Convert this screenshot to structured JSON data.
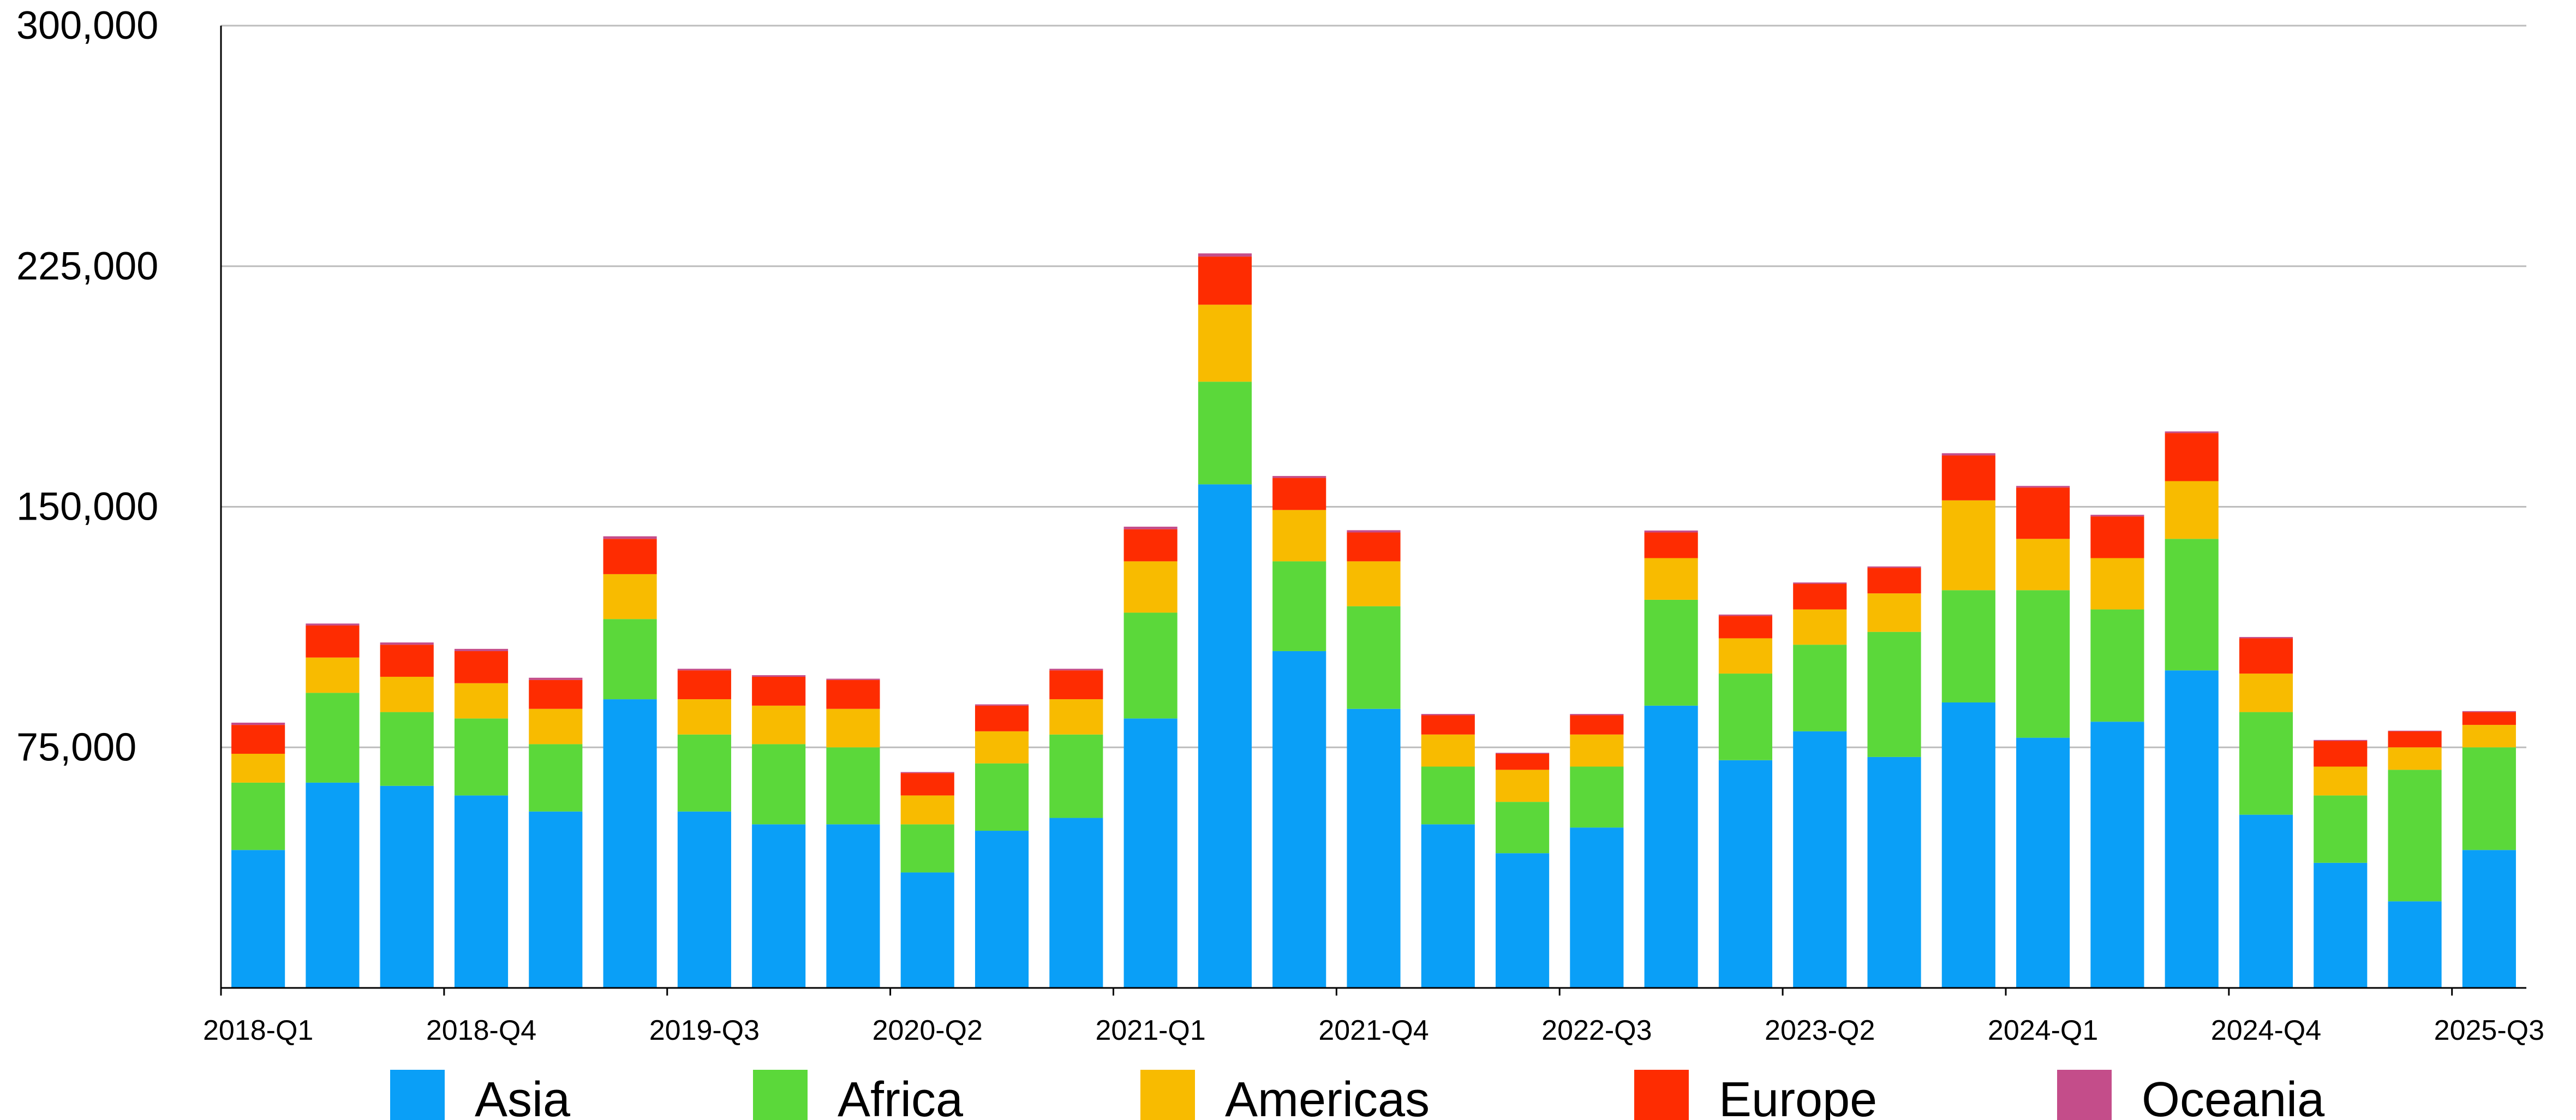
{
  "chart_data": {
    "type": "bar",
    "stacked": true,
    "grid": true,
    "legend_position": "bottom",
    "ylim": [
      0,
      300000
    ],
    "yticks": [
      75000,
      150000,
      225000,
      300000
    ],
    "ytick_labels": [
      "75,000",
      "150,000",
      "225,000",
      "300,000"
    ],
    "categories": [
      "2018-Q1",
      "2018-Q2",
      "2018-Q3",
      "2018-Q4",
      "2019-Q1",
      "2019-Q2",
      "2019-Q3",
      "2019-Q4",
      "2020-Q1",
      "2020-Q2",
      "2020-Q3",
      "2020-Q4",
      "2021-Q1",
      "2021-Q2",
      "2021-Q3",
      "2021-Q4",
      "2022-Q1",
      "2022-Q2",
      "2022-Q3",
      "2022-Q4",
      "2023-Q1",
      "2023-Q2",
      "2023-Q3",
      "2023-Q4",
      "2024-Q1",
      "2024-Q2",
      "2024-Q3",
      "2024-Q4",
      "2025-Q1",
      "2025-Q2",
      "2025-Q3"
    ],
    "shown_xtick_labels": [
      "2018-Q1",
      "2018-Q4",
      "2019-Q3",
      "2020-Q2",
      "2021-Q1",
      "2021-Q4",
      "2022-Q3",
      "2023-Q2",
      "2024-Q1",
      "2024-Q4",
      "2025-Q3"
    ],
    "series": [
      {
        "name": "Asia",
        "color": "#0a9ff7",
        "values": [
          43000,
          64000,
          63000,
          60000,
          55000,
          90000,
          55000,
          51000,
          51000,
          36000,
          49000,
          53000,
          84000,
          157000,
          105000,
          87000,
          51000,
          42000,
          50000,
          88000,
          71000,
          80000,
          72000,
          89000,
          78000,
          83000,
          99000,
          54000,
          39000,
          27000,
          43000
        ]
      },
      {
        "name": "Africa",
        "color": "#5bd83a",
        "values": [
          21000,
          28000,
          23000,
          24000,
          21000,
          25000,
          24000,
          25000,
          24000,
          15000,
          21000,
          26000,
          33000,
          32000,
          28000,
          32000,
          18000,
          16000,
          19000,
          33000,
          27000,
          27000,
          39000,
          35000,
          46000,
          35000,
          41000,
          32000,
          21000,
          41000,
          32000
        ]
      },
      {
        "name": "Americas",
        "color": "#f8bb00",
        "values": [
          9000,
          11000,
          11000,
          11000,
          11000,
          14000,
          11000,
          12000,
          12000,
          9000,
          10000,
          11000,
          16000,
          24000,
          16000,
          14000,
          10000,
          10000,
          10000,
          13000,
          11000,
          11000,
          12000,
          28000,
          16000,
          16000,
          18000,
          12000,
          9000,
          7000,
          7000
        ]
      },
      {
        "name": "Europe",
        "color": "#fe2c01",
        "values": [
          9000,
          10000,
          10000,
          10000,
          9000,
          11000,
          9000,
          9000,
          9000,
          7000,
          8000,
          9000,
          10000,
          15000,
          10000,
          9000,
          6000,
          5000,
          6000,
          8000,
          7000,
          8000,
          8000,
          14000,
          16000,
          13000,
          15000,
          11000,
          8000,
          5000,
          4000
        ]
      },
      {
        "name": "Oceania",
        "color": "#c44d8a",
        "values": [
          700,
          600,
          700,
          700,
          700,
          800,
          500,
          500,
          400,
          300,
          400,
          500,
          800,
          1000,
          600,
          700,
          400,
          300,
          400,
          600,
          400,
          400,
          400,
          700,
          500,
          500,
          500,
          400,
          300,
          200,
          300
        ]
      }
    ]
  }
}
